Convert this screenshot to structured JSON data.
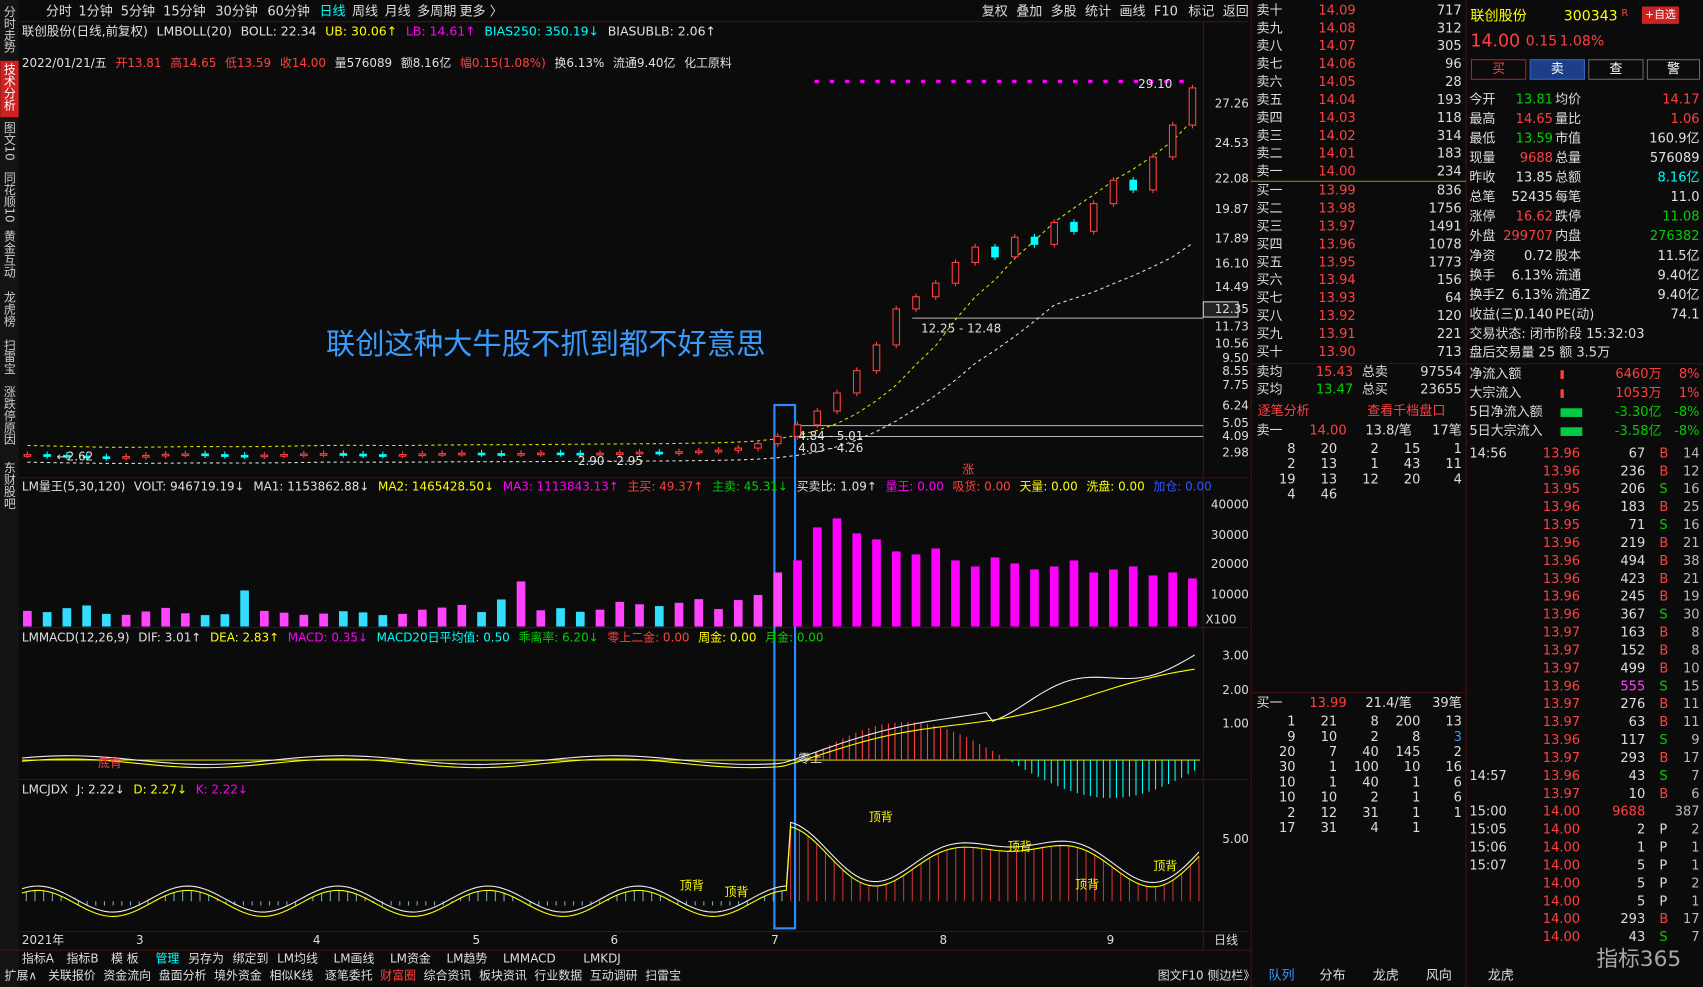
{
  "sidebar": [
    "分时走势",
    "技术分析",
    "图文10",
    "同花顺10",
    "黄金互动",
    "龙虎榜",
    "扫雷宝",
    "涨跌停原因",
    "东财股吧"
  ],
  "sidebar_active": 1,
  "toolbar": {
    "periods": [
      "分时",
      "1分钟",
      "5分钟",
      "15分钟",
      "30分钟",
      "60分钟",
      "日线",
      "周线",
      "月线",
      "多周期",
      "更多 〉"
    ],
    "active_index": 6,
    "actions": [
      "复权",
      "叠加",
      "多股",
      "统计",
      "画线",
      "F10",
      "标记",
      "返回"
    ]
  },
  "price_panel": {
    "header": [
      {
        "text": "联创股份(日线,前复权)",
        "color": "#e0e0e0"
      },
      {
        "text": "LMBOLL(20)",
        "color": "#e0e0e0"
      },
      {
        "text": "BOLL: 22.34",
        "color": "#e0e0e0"
      },
      {
        "text": "UB: 30.06↑",
        "color": "#ffff00"
      },
      {
        "text": "LB: 14.61↑",
        "color": "#ff00ff"
      },
      {
        "text": "BIAS250: 350.19↓",
        "color": "#00ffff"
      },
      {
        "text": "BIASUBLB: 2.06↑",
        "color": "#e0e0e0"
      }
    ],
    "quote": [
      {
        "text": "2022/01/21/五",
        "color": "#e0e0e0"
      },
      {
        "text": "开13.81",
        "color": "#ff4040"
      },
      {
        "text": "高14.65",
        "color": "#ff4040"
      },
      {
        "text": "低13.59",
        "color": "#ff4040"
      },
      {
        "text": "收14.00",
        "color": "#ff4040"
      },
      {
        "text": "量576089",
        "color": "#e0e0e0"
      },
      {
        "text": "额8.16亿",
        "color": "#e0e0e0"
      },
      {
        "text": "幅0.15(1.08%)",
        "color": "#ff4040"
      },
      {
        "text": "换6.13%",
        "color": "#e0e0e0"
      },
      {
        "text": "流通9.40亿",
        "color": "#e0e0e0"
      },
      {
        "text": "化工原料",
        "color": "#e0e0e0"
      }
    ],
    "axis": [
      "27.26",
      "24.53",
      "22.08",
      "19.87",
      "17.89",
      "16.10",
      "14.49",
      "12.35",
      "11.73",
      "10.56",
      "9.50",
      "8.55",
      "7.75",
      "6.24",
      "5.05",
      "4.09",
      "2.98"
    ],
    "highlight_tick_index": 7,
    "closes": [
      2.85,
      2.8,
      2.75,
      2.7,
      2.66,
      2.72,
      2.8,
      2.88,
      2.9,
      2.85,
      2.8,
      2.78,
      2.82,
      2.86,
      2.9,
      2.92,
      2.88,
      2.85,
      2.83,
      2.86,
      2.9,
      2.93,
      2.95,
      2.92,
      2.9,
      2.93,
      2.96,
      2.94,
      2.92,
      2.95,
      2.98,
      3.02,
      3.0,
      3.05,
      3.1,
      3.15,
      3.3,
      3.6,
      4.1,
      4.95,
      5.9,
      7.2,
      8.6,
      10.5,
      12.4,
      13.6,
      14.8,
      16.2,
      17.3,
      16.6,
      18.0,
      17.5,
      19.0,
      18.4,
      20.3,
      22.0,
      21.3,
      23.6,
      25.8,
      28.4
    ],
    "annotations": [
      "29.10",
      "12.25 - 12.48",
      "4.84 - 5.01",
      "4.03 - 4.26",
      "2.90 - 2.95",
      "←2.62",
      "涨"
    ],
    "callout": "联创这种大牛股不抓到都不好意思"
  },
  "volume_panel": {
    "header": [
      {
        "text": "LM量王(5,30,120)",
        "color": "#e0e0e0"
      },
      {
        "text": "VOLT: 946719.19↓",
        "color": "#e0e0e0"
      },
      {
        "text": "MA1: 1153862.88↓",
        "color": "#e0e0e0"
      },
      {
        "text": "MA2: 1465428.50↓",
        "color": "#ffff00"
      },
      {
        "text": "MA3: 1113843.13↑",
        "color": "#ff00ff"
      },
      {
        "text": "主买: 49.37↑",
        "color": "#ff4040"
      },
      {
        "text": "主卖: 45.31↓",
        "color": "#00d000"
      },
      {
        "text": "买卖比: 1.09↑",
        "color": "#e0e0e0"
      },
      {
        "text": "量王: 0.00",
        "color": "#ff00ff"
      },
      {
        "text": "吸货: 0.00",
        "color": "#ff4040"
      },
      {
        "text": "天量: 0.00",
        "color": "#ffff00"
      },
      {
        "text": "洗盘: 0.00",
        "color": "#ffff00"
      },
      {
        "text": "加仓: 0.00",
        "color": "#3355ff"
      }
    ],
    "axis": [
      "40000",
      "30000",
      "20000",
      "10000"
    ],
    "unit": "X100",
    "values": [
      5200,
      4800,
      6100,
      7000,
      4200,
      3900,
      5000,
      6200,
      4400,
      3800,
      4100,
      12000,
      5200,
      4600,
      3900,
      4300,
      5100,
      4700,
      3800,
      4200,
      5600,
      6300,
      7200,
      4800,
      9000,
      15000,
      5400,
      6100,
      4900,
      5600,
      8200,
      7400,
      6800,
      7900,
      9100,
      5800,
      8800,
      10500,
      18000,
      22000,
      33000,
      36000,
      31000,
      29000,
      25000,
      24000,
      26000,
      22000,
      20000,
      23000,
      21000,
      19000,
      20000,
      22000,
      18000,
      19000,
      20000,
      17000,
      18000,
      16000
    ]
  },
  "macd_panel": {
    "header": [
      {
        "text": "LMMACD(12,26,9)",
        "color": "#e0e0e0"
      },
      {
        "text": "DIF: 3.01↑",
        "color": "#e0e0e0"
      },
      {
        "text": "DEA: 2.83↑",
        "color": "#ffff00"
      },
      {
        "text": "MACD: 0.35↓",
        "color": "#ff00ff"
      },
      {
        "text": "MACD20日平均值: 0.50",
        "color": "#00ffff"
      },
      {
        "text": "乖离率: 6.20↓",
        "color": "#00d000"
      },
      {
        "text": "零上二金: 0.00",
        "color": "#ff4040"
      },
      {
        "text": "周金: 0.00",
        "color": "#ffff00"
      },
      {
        "text": "月金: 0.00",
        "color": "#00d000"
      }
    ],
    "axis": [
      "3.00",
      "2.00",
      "1.00"
    ],
    "labels": [
      "底背",
      "零上"
    ]
  },
  "kdj_panel": {
    "header": [
      {
        "text": "LMCJDX",
        "color": "#e0e0e0"
      },
      {
        "text": "J: 2.22↓",
        "color": "#e0e0e0"
      },
      {
        "text": "D: 2.27↓",
        "color": "#ffff00"
      },
      {
        "text": "K: 2.22↓",
        "color": "#ff00ff"
      }
    ],
    "axis": [
      "5.00"
    ],
    "labels": [
      "顶背",
      "顶背",
      "顶背",
      "顶背",
      "顶背",
      "顶背"
    ]
  },
  "x_axis": [
    "2021年",
    "3",
    "4",
    "5",
    "6",
    "7",
    "8",
    "9"
  ],
  "period_label": "日线",
  "indicator_tabs": [
    "指标A",
    "指标B",
    "模 板",
    "管理",
    "另存为",
    "绑定到",
    "LM均线",
    "LM画线",
    "LM资金",
    "LM趋势",
    "LMMACD",
    "LMKDJ"
  ],
  "bottom_tabs": [
    "扩展∧",
    "关联报价",
    "资金流向",
    "盘面分析",
    "境外资金",
    "相似K线",
    "逐笔委托",
    "财富圈",
    "综合资讯",
    "板块资讯",
    "行业数据",
    "互动调研",
    "扫雷宝"
  ],
  "sidebar_toggle": "图文F10 侧边栏》",
  "order_book": {
    "sell": [
      [
        "卖十",
        "14.09",
        "717"
      ],
      [
        "卖九",
        "14.08",
        "312"
      ],
      [
        "卖八",
        "14.07",
        "305"
      ],
      [
        "卖七",
        "14.06",
        "96"
      ],
      [
        "卖六",
        "14.05",
        "28"
      ],
      [
        "卖五",
        "14.04",
        "193"
      ],
      [
        "卖四",
        "14.03",
        "118"
      ],
      [
        "卖三",
        "14.02",
        "314"
      ],
      [
        "卖二",
        "14.01",
        "183"
      ],
      [
        "卖一",
        "14.00",
        "234"
      ]
    ],
    "buy": [
      [
        "买一",
        "13.99",
        "836"
      ],
      [
        "买二",
        "13.98",
        "1756"
      ],
      [
        "买三",
        "13.97",
        "1491"
      ],
      [
        "买四",
        "13.96",
        "1078"
      ],
      [
        "买五",
        "13.95",
        "1773"
      ],
      [
        "买六",
        "13.94",
        "156"
      ],
      [
        "买七",
        "13.93",
        "64"
      ],
      [
        "买八",
        "13.92",
        "120"
      ],
      [
        "买九",
        "13.91",
        "221"
      ],
      [
        "买十",
        "13.90",
        "713"
      ]
    ],
    "summary": [
      [
        "卖均",
        "15.43",
        "总卖",
        "97554"
      ],
      [
        "买均",
        "13.47",
        "总买",
        "23655"
      ]
    ],
    "tabs": [
      "逐笔分析",
      "查看千档盘口"
    ],
    "sell_queue": {
      "head": [
        "卖一",
        "14.00",
        "13.8/笔",
        "17笔"
      ],
      "rows": [
        [
          "8",
          "20",
          "2",
          "15",
          "1"
        ],
        [
          "2",
          "13",
          "1",
          "43",
          "11"
        ],
        [
          "19",
          "13",
          "12",
          "20",
          "4"
        ],
        [
          "4",
          "46"
        ]
      ]
    },
    "buy_queue": {
      "head": [
        "买一",
        "13.99",
        "21.4/笔",
        "39笔"
      ],
      "rows": [
        [
          "1",
          "21",
          "8",
          "200",
          "13"
        ],
        [
          "9",
          "10",
          "2",
          "8",
          "3"
        ],
        [
          "20",
          "7",
          "40",
          "145",
          "2"
        ],
        [
          "30",
          "1",
          "100",
          "10",
          "16"
        ],
        [
          "10",
          "1",
          "40",
          "1",
          "6"
        ],
        [
          "10",
          "10",
          "2",
          "1",
          "6"
        ],
        [
          "2",
          "12",
          "31",
          "1",
          "1"
        ],
        [
          "17",
          "31",
          "4",
          "1"
        ]
      ]
    }
  },
  "quote_panel": {
    "name": "联创股份",
    "code": "300343",
    "badge": "R",
    "add": "+自选",
    "price": "14.00",
    "change": "0.15",
    "pct": "1.08%",
    "buttons": [
      "买",
      "卖",
      "查",
      "警"
    ],
    "stats": [
      [
        "今开",
        "13.81",
        "均价",
        "14.17"
      ],
      [
        "最高",
        "14.65",
        "量比",
        "1.06"
      ],
      [
        "最低",
        "13.59",
        "市值",
        "160.9亿"
      ],
      [
        "现量",
        "9688",
        "总量",
        "576089"
      ],
      [
        "昨收",
        "13.85",
        "总额",
        "8.16亿"
      ],
      [
        "总笔",
        "52435",
        "每笔",
        "11.0"
      ],
      [
        "涨停",
        "16.62",
        "跌停",
        "11.08"
      ],
      [
        "外盘",
        "299707",
        "内盘",
        "276382"
      ],
      [
        "净资",
        "0.72",
        "股本",
        "11.5亿"
      ],
      [
        "换手",
        "6.13%",
        "流通",
        "9.40亿"
      ],
      [
        "换手Z",
        "6.13%",
        "流通Z",
        "9.40亿"
      ],
      [
        "收益(三)",
        "0.140",
        "PE(动)",
        "74.1"
      ]
    ],
    "stat_colors": [
      [
        "#00d000",
        "#ff4040"
      ],
      [
        "#ff4040",
        "#ff4040"
      ],
      [
        "#00d000",
        "#e0e0e0"
      ],
      [
        "#ff4040",
        "#e0e0e0"
      ],
      [
        "#e0e0e0",
        "#00ffff"
      ],
      [
        "#e0e0e0",
        "#e0e0e0"
      ],
      [
        "#ff4040",
        "#00d000"
      ],
      [
        "#ff4040",
        "#00d000"
      ],
      [
        "#e0e0e0",
        "#e0e0e0"
      ],
      [
        "#e0e0e0",
        "#e0e0e0"
      ],
      [
        "#e0e0e0",
        "#e0e0e0"
      ],
      [
        "#e0e0e0",
        "#e0e0e0"
      ]
    ],
    "status": "交易状态: 闭市阶段 15:32:03",
    "after_hours": "盘后交易量 25 额 3.5万",
    "flows": [
      [
        "净流入额",
        "6460万",
        "8%"
      ],
      [
        "大宗流入",
        "1053万",
        "1%"
      ],
      [
        "5日净流入额",
        "-3.30亿",
        "-8%"
      ],
      [
        "5日大宗流入",
        "-3.58亿",
        "-8%"
      ]
    ]
  },
  "ticks": [
    [
      "14:56",
      "13.96",
      "67",
      "B",
      "14"
    ],
    [
      null,
      "13.96",
      "236",
      "B",
      "12"
    ],
    [
      null,
      "13.95",
      "206",
      "S",
      "16"
    ],
    [
      null,
      "13.96",
      "183",
      "B",
      "25"
    ],
    [
      null,
      "13.95",
      "71",
      "S",
      "16"
    ],
    [
      null,
      "13.96",
      "219",
      "B",
      "21"
    ],
    [
      null,
      "13.96",
      "494",
      "B",
      "38"
    ],
    [
      null,
      "13.96",
      "423",
      "B",
      "21"
    ],
    [
      null,
      "13.96",
      "245",
      "B",
      "19"
    ],
    [
      null,
      "13.96",
      "367",
      "S",
      "30"
    ],
    [
      null,
      "13.97",
      "163",
      "B",
      "8"
    ],
    [
      null,
      "13.97",
      "152",
      "B",
      "8"
    ],
    [
      null,
      "13.97",
      "499",
      "B",
      "10"
    ],
    [
      null,
      "13.96",
      "555",
      "S",
      "15"
    ],
    [
      null,
      "13.97",
      "276",
      "B",
      "11"
    ],
    [
      null,
      "13.97",
      "63",
      "B",
      "11"
    ],
    [
      null,
      "13.96",
      "117",
      "S",
      "9"
    ],
    [
      null,
      "13.97",
      "293",
      "B",
      "17"
    ],
    [
      "14:57",
      "13.96",
      "43",
      "S",
      "7"
    ],
    [
      null,
      "13.97",
      "10",
      "B",
      "6"
    ],
    [
      "15:00",
      "14.00",
      "9688",
      null,
      "387"
    ],
    [
      "15:05",
      "14.00",
      "2",
      "P",
      "2"
    ],
    [
      "15:06",
      "14.00",
      "1",
      "P",
      "1"
    ],
    [
      "15:07",
      "14.00",
      "5",
      "P",
      "1"
    ],
    [
      null,
      "14.00",
      "5",
      "P",
      "2"
    ],
    [
      null,
      "14.00",
      "5",
      "P",
      "1"
    ],
    [
      null,
      "14.00",
      "293",
      "B",
      "17"
    ],
    [
      null,
      "14.00",
      "43",
      "S",
      "7"
    ]
  ],
  "side_tabs": [
    "队列",
    "分布",
    "龙虎",
    "风向",
    "龙虎"
  ],
  "watermark": "指标365"
}
